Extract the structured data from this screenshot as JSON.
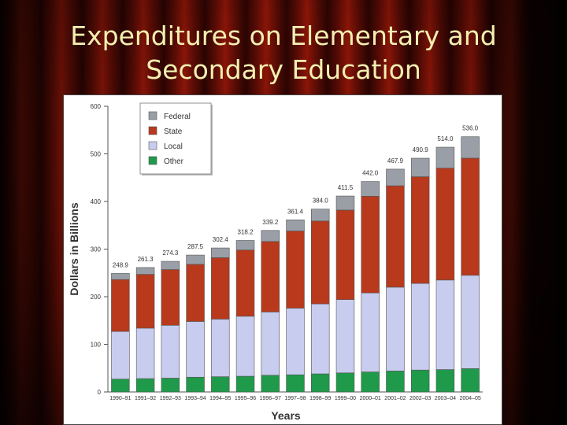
{
  "slide": {
    "title_line1": "Expenditures on Elementary and",
    "title_line2": "Secondary Education"
  },
  "colors": {
    "federal": "#9a9ea6",
    "state": "#b8391c",
    "local": "#c8ccee",
    "other": "#1e9a4a"
  },
  "chart_data": {
    "type": "bar",
    "stacked": true,
    "title": "",
    "xlabel": "Years",
    "ylabel": "Dollars in Billions",
    "ylim": [
      0,
      600
    ],
    "yticks": [
      0,
      100,
      200,
      300,
      400,
      500,
      600
    ],
    "grid": false,
    "legend_position": "top-left",
    "legend_order": [
      "Federal",
      "State",
      "Local",
      "Other"
    ],
    "categories": [
      "1990–91",
      "1991–92",
      "1992–93",
      "1993–94",
      "1994–95",
      "1995–96",
      "1996–97",
      "1997–98",
      "1998–99",
      "1999–00",
      "2000–01",
      "2001–02",
      "2002–03",
      "2003–04",
      "2004–05"
    ],
    "totals": [
      "248.9",
      "261.3",
      "274.3",
      "287.5",
      "302.4",
      "318.2",
      "339.2",
      "361.4",
      "384.0",
      "411.5",
      "442.0",
      "467.9",
      "490.9",
      "514.0",
      "536.0"
    ],
    "series": [
      {
        "name": "Other",
        "color_key": "other",
        "values": [
          27,
          28,
          29,
          31,
          32,
          33,
          35,
          36,
          38,
          40,
          42,
          44,
          46,
          47,
          49
        ]
      },
      {
        "name": "Local",
        "color_key": "local",
        "values": [
          100,
          106,
          111,
          117,
          121,
          126,
          133,
          140,
          147,
          154,
          166,
          176,
          182,
          188,
          196
        ]
      },
      {
        "name": "State",
        "color_key": "state",
        "values": [
          109,
          113,
          117,
          120,
          129,
          139,
          148,
          162,
          174,
          188,
          203,
          213,
          224,
          235,
          246
        ]
      },
      {
        "name": "Federal",
        "color_key": "federal",
        "values": [
          12.9,
          14.3,
          17.3,
          19.5,
          20.4,
          20.2,
          23.2,
          23.4,
          25.0,
          29.5,
          31.0,
          34.9,
          38.9,
          44.0,
          45.0
        ]
      }
    ]
  }
}
